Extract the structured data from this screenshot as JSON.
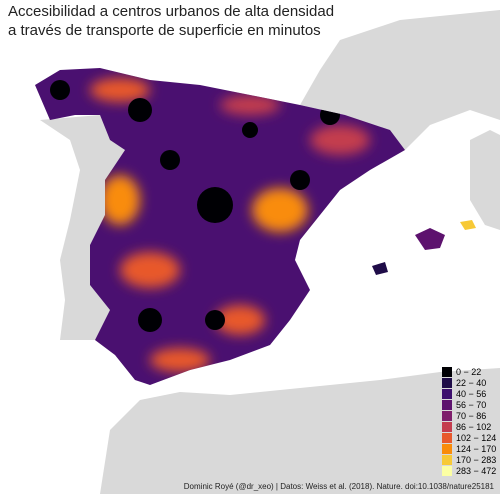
{
  "title": [
    "Accesibilidad a centros urbanos de alta densidad",
    "a través de transporte de superficie en minutos"
  ],
  "legend": [
    {
      "label": "0 − 22",
      "color": "#000004"
    },
    {
      "label": "22 − 40",
      "color": "#1f0c48"
    },
    {
      "label": "40 − 56",
      "color": "#3d0f6e"
    },
    {
      "label": "56 − 70",
      "color": "#5d126e"
    },
    {
      "label": "70 − 86",
      "color": "#7e1d6b"
    },
    {
      "label": "86 − 102",
      "color": "#c43c4e"
    },
    {
      "label": "102 − 124",
      "color": "#e8592c"
    },
    {
      "label": "124 − 170",
      "color": "#f98c0a"
    },
    {
      "label": "170 − 283",
      "color": "#f7c936"
    },
    {
      "label": "283 − 472",
      "color": "#fcffa4"
    }
  ],
  "caption": "Dominic Royé (@dr_xeo) | Datos: Weiss et al. (2018). Nature. doi:10.1038/nature25181"
}
